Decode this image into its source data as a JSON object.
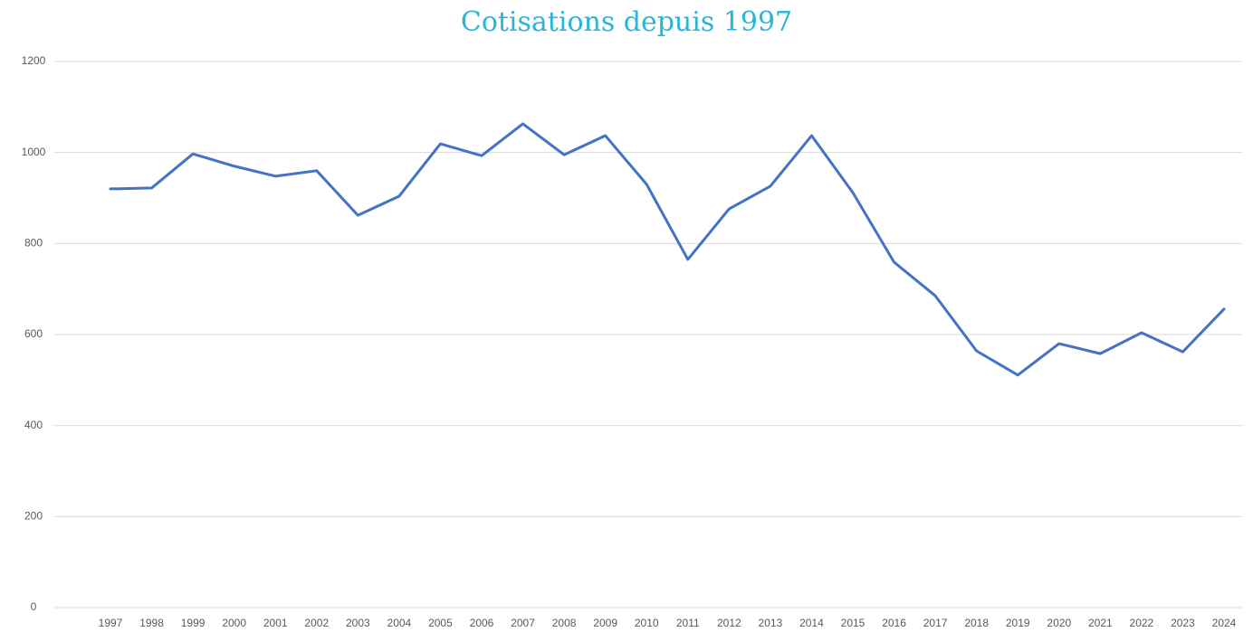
{
  "chart_data": {
    "type": "line",
    "title": "Cotisations depuis 1997",
    "categories": [
      "1997",
      "1998",
      "1999",
      "2000",
      "2001",
      "2002",
      "2003",
      "2004",
      "2005",
      "2006",
      "2007",
      "2008",
      "2009",
      "2010",
      "2011",
      "2012",
      "2013",
      "2014",
      "2015",
      "2016",
      "2017",
      "2018",
      "2019",
      "2020",
      "2021",
      "2022",
      "2023",
      "2024"
    ],
    "series": [
      {
        "color": "#4472c4",
        "values": [
          920,
          922,
          997,
          970,
          948,
          960,
          862,
          904,
          1019,
          993,
          1063,
          995,
          1037,
          930,
          765,
          876,
          926,
          1037,
          912,
          759,
          685,
          564,
          511,
          580,
          558,
          604,
          562,
          656
        ]
      }
    ],
    "ylim": [
      0,
      1200
    ],
    "yticks": [
      0,
      200,
      400,
      600,
      800,
      1000,
      1200
    ],
    "grid": true
  }
}
